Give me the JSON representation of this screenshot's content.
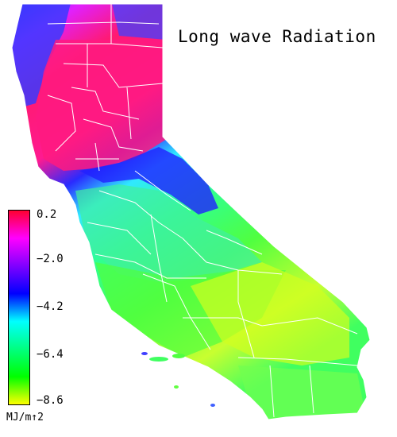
{
  "title": "Long wave Radiation",
  "legend": {
    "ticks": [
      "0.2",
      "−2.0",
      "−4.2",
      "−6.4",
      "−8.6"
    ],
    "units": "MJ/m↑2",
    "colors": [
      "#ff0030",
      "#ff00ff",
      "#8000ff",
      "#0000ff",
      "#00ffff",
      "#00ff80",
      "#00ff00",
      "#ffff00"
    ]
  },
  "map_colors": {
    "north_coast": "#3a3aff",
    "north_interior": "#ff1a80",
    "sierra_band": "#2020ff",
    "central_valley": "#40f0a0",
    "south": "#60ff40",
    "desert": "#d0ff20",
    "county_lines": "#ffffff"
  }
}
